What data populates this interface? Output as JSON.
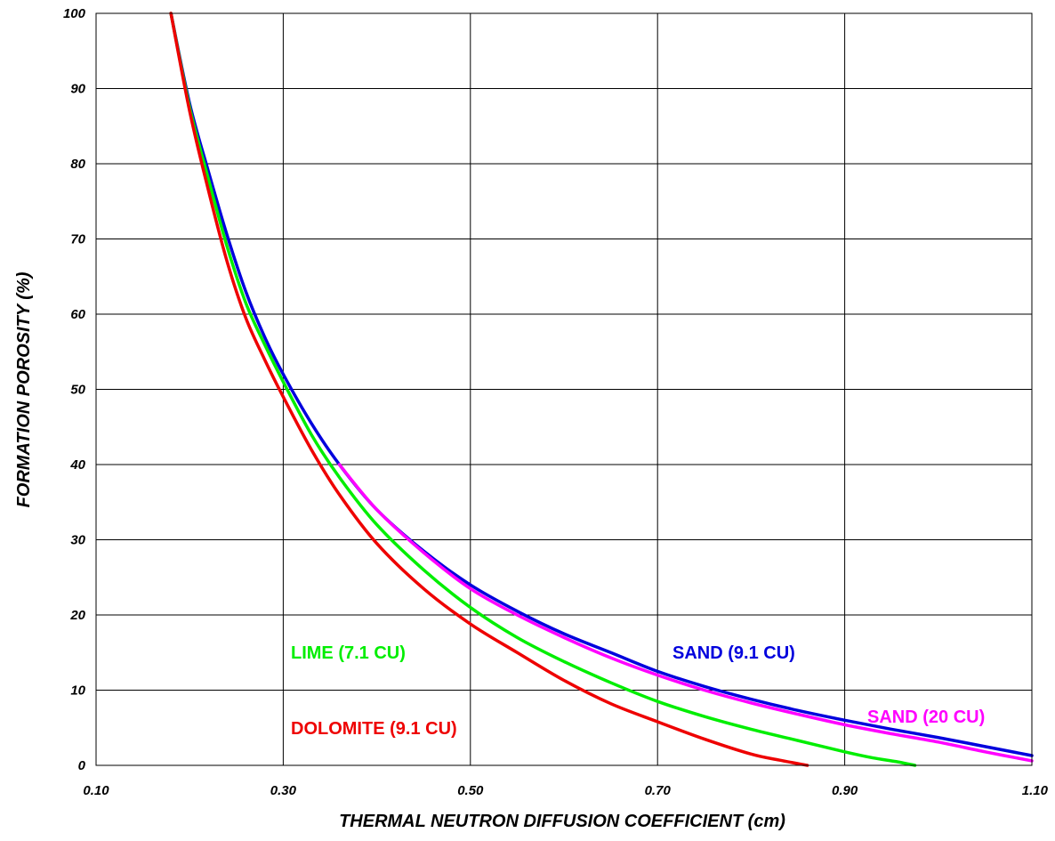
{
  "chart_data": {
    "type": "line",
    "title": "",
    "xlabel": "THERMAL NEUTRON DIFFUSION COEFFICIENT   (cm)",
    "ylabel": "FORMATION POROSITY (%)",
    "xlim": [
      0.1,
      1.1
    ],
    "ylim": [
      0,
      100
    ],
    "x_ticks": [
      "0.10",
      "0.30",
      "0.50",
      "0.70",
      "0.90",
      "1.10"
    ],
    "y_ticks": [
      "0",
      "10",
      "20",
      "30",
      "40",
      "50",
      "60",
      "70",
      "80",
      "90",
      "100"
    ],
    "grid": true,
    "series": [
      {
        "name": "SAND  (9.1 CU)",
        "color": "#0000dd",
        "x": [
          0.18,
          0.2,
          0.22,
          0.24,
          0.26,
          0.28,
          0.3,
          0.33,
          0.36,
          0.4,
          0.45,
          0.5,
          0.55,
          0.6,
          0.65,
          0.7,
          0.75,
          0.8,
          0.85,
          0.9,
          0.95,
          1.0,
          1.05,
          1.1
        ],
        "y": [
          100,
          88,
          79,
          70.5,
          63,
          57,
          52,
          45.5,
          40,
          34,
          28.5,
          24,
          20.5,
          17.5,
          15,
          12.5,
          10.5,
          8.8,
          7.3,
          6,
          4.8,
          3.7,
          2.5,
          1.3
        ]
      },
      {
        "name": "SAND (20 CU)",
        "color": "#ff00ff",
        "x": [
          0.36,
          0.4,
          0.45,
          0.5,
          0.55,
          0.6,
          0.65,
          0.7,
          0.75,
          0.8,
          0.85,
          0.9,
          0.95,
          1.0,
          1.05,
          1.1
        ],
        "y": [
          40,
          34,
          28.3,
          23.5,
          20,
          17,
          14.3,
          12,
          10,
          8.3,
          6.8,
          5.4,
          4.2,
          3.1,
          1.8,
          0.6
        ]
      },
      {
        "name": "LIME  (7.1 CU)",
        "color": "#00ee00",
        "x": [
          0.18,
          0.2,
          0.22,
          0.24,
          0.26,
          0.28,
          0.3,
          0.33,
          0.36,
          0.4,
          0.45,
          0.5,
          0.55,
          0.6,
          0.65,
          0.7,
          0.75,
          0.8,
          0.85,
          0.9,
          0.93,
          0.955,
          0.975
        ],
        "y": [
          100,
          87.5,
          78,
          69,
          61.5,
          56,
          51,
          44,
          38.3,
          32,
          26,
          21,
          17,
          13.8,
          11,
          8.5,
          6.5,
          4.8,
          3.3,
          1.8,
          1,
          0.5,
          0
        ]
      },
      {
        "name": "DOLOMITE  (9.1 CU)",
        "color": "#ee0000",
        "x": [
          0.18,
          0.2,
          0.22,
          0.24,
          0.26,
          0.28,
          0.3,
          0.33,
          0.36,
          0.4,
          0.45,
          0.5,
          0.55,
          0.6,
          0.65,
          0.7,
          0.75,
          0.8,
          0.83,
          0.86
        ],
        "y": [
          100,
          87,
          76.5,
          67,
          59.5,
          54,
          49,
          42,
          36,
          29.5,
          23.5,
          18.8,
          15,
          11.3,
          8.2,
          5.8,
          3.5,
          1.5,
          0.7,
          0
        ]
      }
    ]
  },
  "labels": {
    "sand_91": "SAND  (9.1 CU)",
    "sand_20": "SAND (20 CU)",
    "lime": "LIME  (7.1 CU)",
    "dolomite": "DOLOMITE  (9.1 CU)"
  }
}
